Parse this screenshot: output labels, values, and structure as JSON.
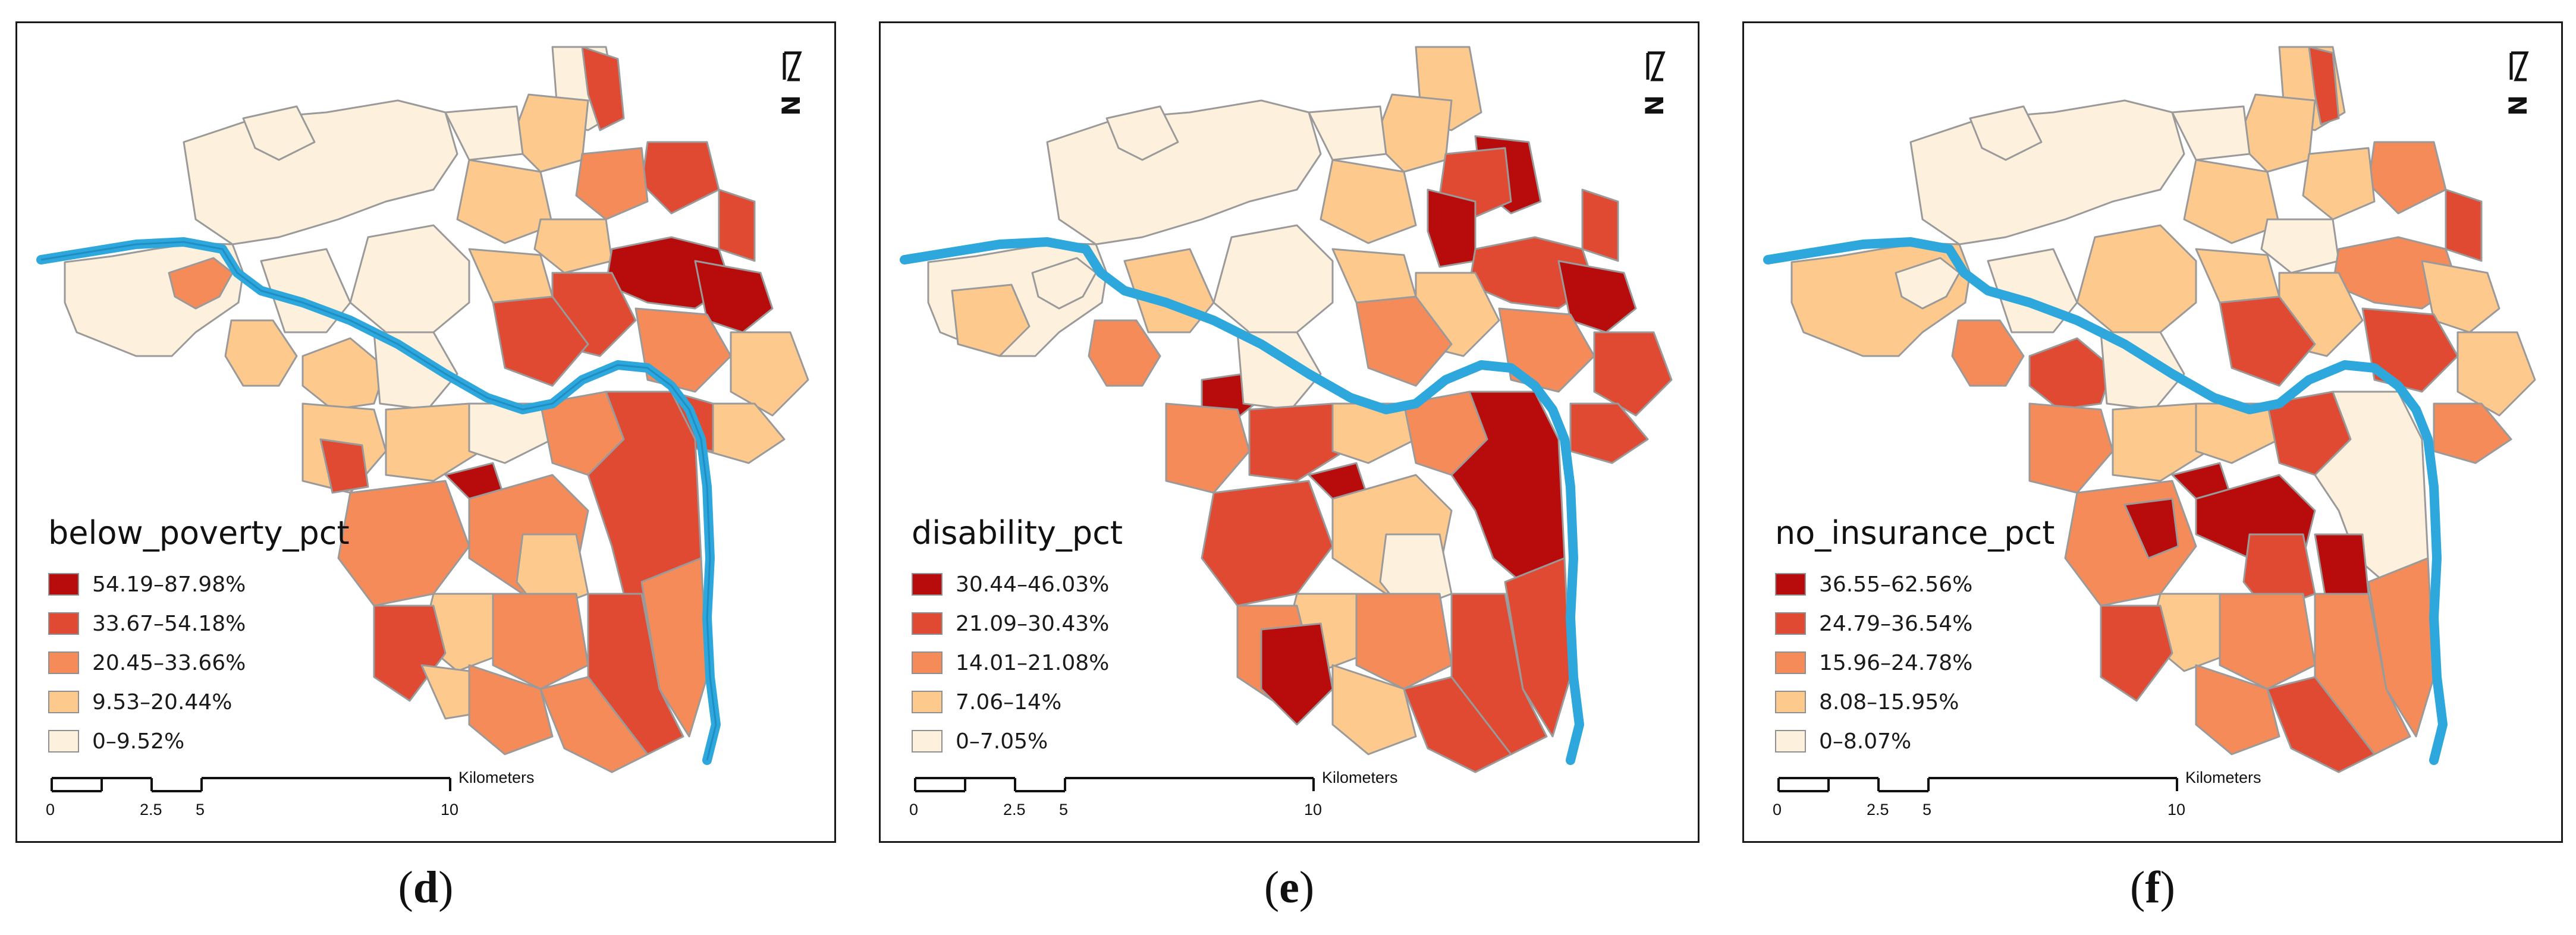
{
  "colors": {
    "c1": "#fdf0dc",
    "c2": "#fdc98c",
    "c3": "#f68b5a",
    "c4": "#e04a33",
    "c5": "#b80c0c",
    "river": "#2ea8dc",
    "boundary": "#9a9a9a"
  },
  "north_arrow": {
    "icon": "north-arrow-icon",
    "letter": "N"
  },
  "scale": {
    "unit": "Kilometers",
    "ticks": [
      "0",
      "2.5",
      "5",
      "10"
    ]
  },
  "panels": [
    {
      "id": "d",
      "caption_open": "(",
      "caption_letter": "d",
      "caption_close": ")",
      "legend_title": "below_poverty_pct",
      "legend": [
        "54.19–87.98%",
        "33.67–54.18%",
        "20.45–33.66%",
        "9.53–20.44%",
        "0–9.52%"
      ]
    },
    {
      "id": "e",
      "caption_open": "(",
      "caption_letter": "e",
      "caption_close": ")",
      "legend_title": "disability_pct",
      "legend": [
        "30.44–46.03%",
        "21.09–30.43%",
        "14.01–21.08%",
        "7.06–14%",
        "0–7.05%"
      ]
    },
    {
      "id": "f",
      "caption_open": "(",
      "caption_letter": "f",
      "caption_close": ")",
      "legend_title": "no_insurance_pct",
      "legend": [
        "36.55–62.56%",
        "24.79–36.54%",
        "15.96–24.78%",
        "8.08–15.95%",
        "0–8.07%"
      ]
    }
  ]
}
